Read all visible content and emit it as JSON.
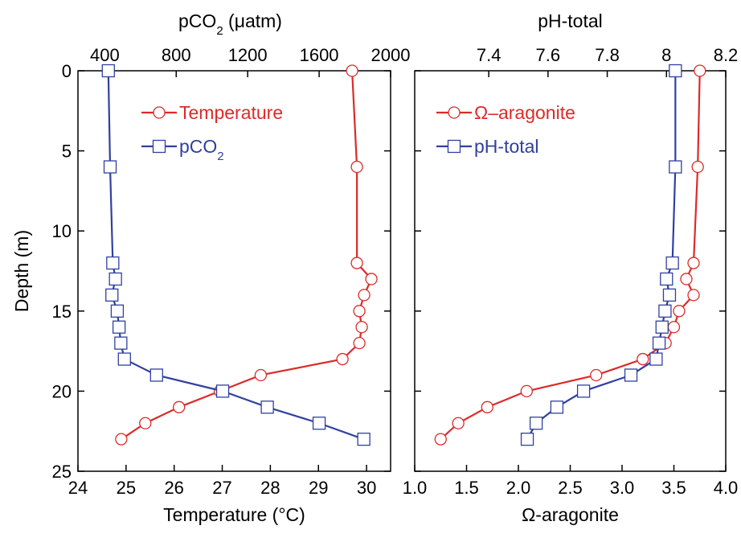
{
  "chart_data": [
    {
      "type": "line",
      "orientation": "depth-profile",
      "ylabel": "Depth (m)",
      "ylim": [
        25,
        0
      ],
      "yticks": [
        0,
        5,
        10,
        15,
        20,
        25
      ],
      "bottom_axis": {
        "label": "Temperature (°C)",
        "range": [
          24,
          30.5
        ],
        "ticks": [
          24,
          25,
          26,
          27,
          28,
          29,
          30
        ],
        "tick_labels": [
          "24",
          "25",
          "26",
          "27",
          "28",
          "29",
          "30"
        ]
      },
      "top_axis": {
        "label": "pCO",
        "label_sub": "2",
        "label_unit": " (μatm)",
        "range": [
          250,
          2000
        ],
        "ticks": [
          400,
          800,
          1200,
          1600,
          2000
        ],
        "tick_labels": [
          "400",
          "800",
          "1200",
          "1600",
          "2000"
        ]
      },
      "legend_position": "top-right",
      "series": [
        {
          "name": "Temperature",
          "axis": "bottom",
          "marker": "circle",
          "color": "#dd2a2a",
          "depth": [
            0,
            6,
            12,
            13,
            14,
            15,
            16,
            17,
            18,
            19,
            20,
            21,
            22,
            23
          ],
          "values": [
            29.7,
            29.8,
            29.8,
            30.1,
            29.95,
            29.85,
            29.9,
            29.85,
            29.5,
            27.8,
            26.95,
            26.1,
            25.4,
            24.9
          ]
        },
        {
          "name": "pCO",
          "name_sub": "2",
          "axis": "top",
          "marker": "square",
          "color": "#3040a0",
          "depth": [
            0,
            6,
            12,
            13,
            14,
            15,
            16,
            17,
            18,
            19,
            20,
            21,
            22,
            23
          ],
          "values": [
            420,
            430,
            445,
            460,
            440,
            470,
            480,
            490,
            510,
            690,
            1060,
            1310,
            1600,
            1850
          ]
        }
      ]
    },
    {
      "type": "line",
      "orientation": "depth-profile",
      "ylim": [
        25,
        0
      ],
      "yticks": [
        0,
        5,
        10,
        15,
        20,
        25
      ],
      "bottom_axis": {
        "label": "Ω-aragonite",
        "range": [
          1.0,
          4.0
        ],
        "ticks": [
          1.0,
          1.5,
          2.0,
          2.5,
          3.0,
          3.5,
          4.0
        ],
        "tick_labels": [
          "1.0",
          "1.5",
          "2.0",
          "2.5",
          "3.0",
          "3.5",
          "4.0"
        ]
      },
      "top_axis": {
        "label": "pH-total",
        "range": [
          7.15,
          8.2
        ],
        "ticks": [
          7.4,
          7.6,
          7.8,
          8.0,
          8.2
        ],
        "tick_labels": [
          "7.4",
          "7.6",
          "7.8",
          "8",
          "8.2"
        ]
      },
      "legend_position": "top-left",
      "series": [
        {
          "name": "Ω–aragonite",
          "axis": "bottom",
          "marker": "circle",
          "color": "#dd2a2a",
          "depth": [
            0,
            6,
            12,
            13,
            14,
            15,
            16,
            17,
            18,
            19,
            20,
            21,
            22,
            23
          ],
          "values": [
            3.75,
            3.73,
            3.69,
            3.62,
            3.69,
            3.55,
            3.5,
            3.42,
            3.2,
            2.75,
            2.08,
            1.7,
            1.42,
            1.25
          ]
        },
        {
          "name": "pH-total",
          "axis": "top",
          "marker": "square",
          "color": "#3040a0",
          "depth": [
            0,
            6,
            12,
            13,
            14,
            15,
            16,
            17,
            18,
            19,
            20,
            21,
            22,
            23
          ],
          "values": [
            8.03,
            8.03,
            8.02,
            8.0,
            8.01,
            7.995,
            7.985,
            7.975,
            7.965,
            7.88,
            7.72,
            7.63,
            7.56,
            7.53
          ]
        }
      ]
    }
  ]
}
